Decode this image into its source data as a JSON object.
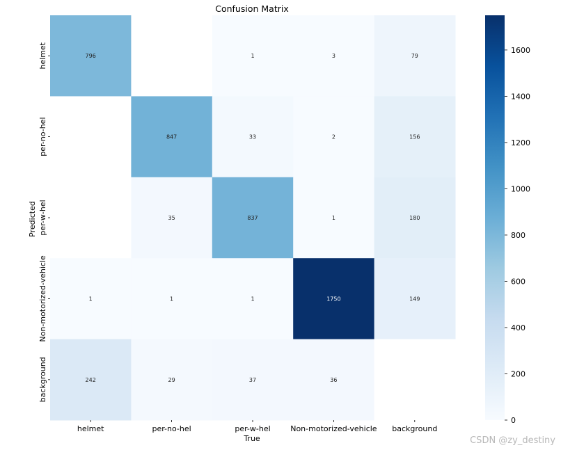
{
  "chart_data": {
    "type": "heatmap",
    "title": "Confusion Matrix",
    "xlabel": "True",
    "ylabel": "Predicted",
    "x_categories": [
      "helmet",
      "per-no-hel",
      "per-w-hel",
      "Non-motorized-vehicle",
      "background"
    ],
    "y_categories": [
      "helmet",
      "per-no-hel",
      "per-w-hel",
      "Non-motorized-vehicle",
      "background"
    ],
    "values": [
      [
        796,
        null,
        1,
        3,
        79
      ],
      [
        null,
        847,
        33,
        2,
        156
      ],
      [
        null,
        35,
        837,
        1,
        180
      ],
      [
        1,
        1,
        1,
        1750,
        149
      ],
      [
        242,
        29,
        37,
        36,
        null
      ]
    ],
    "colormap": "Blues",
    "colorbar": {
      "min": 0,
      "max": 1750,
      "ticks": [
        0,
        200,
        400,
        600,
        800,
        1000,
        1200,
        1400,
        1600
      ]
    }
  },
  "watermark": "CSDN @zy_destiny"
}
